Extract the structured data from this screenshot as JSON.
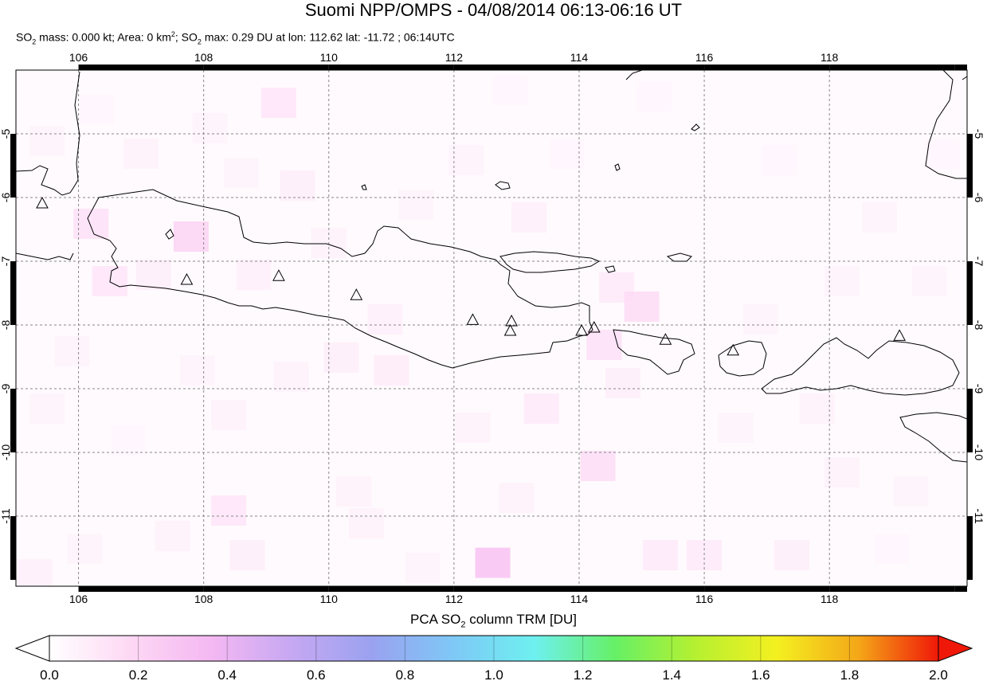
{
  "title": "Suomi NPP/OMPS - 04/08/2014 06:13-06:16 UT",
  "subtitle": {
    "p1": "SO",
    "p1_sub": "2",
    "p2": " mass: 0.000 kt; Area: 0 km",
    "p2_sup": "2",
    "p3": "; SO",
    "p3_sub": "2",
    "p4": " max: 0.29 DU at lon: 112.62 lat: -11.72 ; 06:14UTC"
  },
  "map": {
    "lon_range": [
      105,
      120.2
    ],
    "lat_range": [
      -12.1,
      -4
    ],
    "lon_ticks": [
      "106",
      "108",
      "110",
      "112",
      "114",
      "116",
      "118"
    ],
    "lat_ticks": [
      "-5",
      "-6",
      "-7",
      "-8",
      "-9",
      "-10",
      "-11"
    ],
    "grid": true,
    "volcanoes": [
      {
        "lon": 105.42,
        "lat": -6.1
      },
      {
        "lon": 107.73,
        "lat": -7.3
      },
      {
        "lon": 109.2,
        "lat": -7.24
      },
      {
        "lon": 110.44,
        "lat": -7.54
      },
      {
        "lon": 112.3,
        "lat": -7.93
      },
      {
        "lon": 112.92,
        "lat": -7.95
      },
      {
        "lon": 112.9,
        "lat": -8.1
      },
      {
        "lon": 114.04,
        "lat": -8.1
      },
      {
        "lon": 114.24,
        "lat": -8.05
      },
      {
        "lon": 115.38,
        "lat": -8.24
      },
      {
        "lon": 116.46,
        "lat": -8.41
      },
      {
        "lon": 119.12,
        "lat": -8.18
      }
    ],
    "so2_pixels": [
      {
        "lon": 105.5,
        "lat": -5.1,
        "v": 0.05
      },
      {
        "lon": 106.3,
        "lat": -4.6,
        "v": 0.04
      },
      {
        "lon": 107.0,
        "lat": -5.3,
        "v": 0.06
      },
      {
        "lon": 108.1,
        "lat": -4.9,
        "v": 0.05
      },
      {
        "lon": 109.2,
        "lat": -4.5,
        "v": 0.12
      },
      {
        "lon": 108.6,
        "lat": -5.6,
        "v": 0.05
      },
      {
        "lon": 109.5,
        "lat": -5.8,
        "v": 0.08
      },
      {
        "lon": 106.2,
        "lat": -6.4,
        "v": 0.14
      },
      {
        "lon": 107.8,
        "lat": -6.6,
        "v": 0.2
      },
      {
        "lon": 106.5,
        "lat": -7.3,
        "v": 0.12
      },
      {
        "lon": 107.2,
        "lat": -7.2,
        "v": 0.08
      },
      {
        "lon": 108.8,
        "lat": -7.2,
        "v": 0.07
      },
      {
        "lon": 110.0,
        "lat": -6.7,
        "v": 0.06
      },
      {
        "lon": 110.9,
        "lat": -7.9,
        "v": 0.07
      },
      {
        "lon": 111.4,
        "lat": -6.1,
        "v": 0.05
      },
      {
        "lon": 112.2,
        "lat": -5.4,
        "v": 0.05
      },
      {
        "lon": 113.2,
        "lat": -6.3,
        "v": 0.07
      },
      {
        "lon": 114.6,
        "lat": -7.4,
        "v": 0.1
      },
      {
        "lon": 115.0,
        "lat": -7.7,
        "v": 0.16
      },
      {
        "lon": 114.4,
        "lat": -8.3,
        "v": 0.14
      },
      {
        "lon": 114.7,
        "lat": -8.9,
        "v": 0.08
      },
      {
        "lon": 105.9,
        "lat": -8.4,
        "v": 0.05
      },
      {
        "lon": 105.5,
        "lat": -9.3,
        "v": 0.05
      },
      {
        "lon": 106.8,
        "lat": -9.8,
        "v": 0.04
      },
      {
        "lon": 107.9,
        "lat": -8.7,
        "v": 0.05
      },
      {
        "lon": 108.4,
        "lat": -9.4,
        "v": 0.06
      },
      {
        "lon": 109.4,
        "lat": -8.8,
        "v": 0.06
      },
      {
        "lon": 110.2,
        "lat": -8.5,
        "v": 0.08
      },
      {
        "lon": 111.0,
        "lat": -8.7,
        "v": 0.09
      },
      {
        "lon": 112.3,
        "lat": -9.6,
        "v": 0.06
      },
      {
        "lon": 113.4,
        "lat": -9.3,
        "v": 0.1
      },
      {
        "lon": 114.3,
        "lat": -10.2,
        "v": 0.15
      },
      {
        "lon": 113.0,
        "lat": -10.7,
        "v": 0.06
      },
      {
        "lon": 112.62,
        "lat": -11.72,
        "v": 0.29
      },
      {
        "lon": 110.4,
        "lat": -10.6,
        "v": 0.06
      },
      {
        "lon": 108.4,
        "lat": -10.9,
        "v": 0.12
      },
      {
        "lon": 107.5,
        "lat": -11.3,
        "v": 0.06
      },
      {
        "lon": 106.1,
        "lat": -11.5,
        "v": 0.05
      },
      {
        "lon": 108.7,
        "lat": -11.6,
        "v": 0.08
      },
      {
        "lon": 110.6,
        "lat": -11.1,
        "v": 0.06
      },
      {
        "lon": 111.5,
        "lat": -11.8,
        "v": 0.05
      },
      {
        "lon": 115.3,
        "lat": -11.6,
        "v": 0.1
      },
      {
        "lon": 116.0,
        "lat": -11.6,
        "v": 0.1
      },
      {
        "lon": 117.4,
        "lat": -11.6,
        "v": 0.08
      },
      {
        "lon": 118.2,
        "lat": -10.3,
        "v": 0.06
      },
      {
        "lon": 119.3,
        "lat": -10.6,
        "v": 0.05
      },
      {
        "lon": 119.0,
        "lat": -11.5,
        "v": 0.04
      },
      {
        "lon": 117.8,
        "lat": -9.3,
        "v": 0.06
      },
      {
        "lon": 116.5,
        "lat": -9.6,
        "v": 0.05
      },
      {
        "lon": 118.2,
        "lat": -7.3,
        "v": 0.05
      },
      {
        "lon": 117.2,
        "lat": -5.4,
        "v": 0.04
      },
      {
        "lon": 118.8,
        "lat": -6.3,
        "v": 0.05
      },
      {
        "lon": 119.6,
        "lat": -7.3,
        "v": 0.05
      },
      {
        "lon": 119.8,
        "lat": -5.3,
        "v": 0.04
      },
      {
        "lon": 116.9,
        "lat": -7.9,
        "v": 0.05
      },
      {
        "lon": 115.2,
        "lat": -4.4,
        "v": 0.04
      },
      {
        "lon": 113.8,
        "lat": -5.3,
        "v": 0.04
      },
      {
        "lon": 112.9,
        "lat": -4.3,
        "v": 0.04
      },
      {
        "lon": 105.3,
        "lat": -11.9,
        "v": 0.07
      }
    ]
  },
  "colorbar": {
    "title_a": "PCA SO",
    "title_sub": "2",
    "title_b": " column TRM [DU]",
    "vmin": 0.0,
    "vmax": 2.0,
    "tick_values": [
      0.0,
      0.2,
      0.4,
      0.6,
      0.8,
      1.0,
      1.2,
      1.4,
      1.6,
      1.8,
      2.0
    ],
    "tick_labels": [
      "0.0",
      "0.2",
      "0.4",
      "0.6",
      "0.8",
      "1.0",
      "1.2",
      "1.4",
      "1.6",
      "1.8",
      "2.0"
    ],
    "colors": [
      "#ffffff",
      "#fdd8f4",
      "#f4b8f2",
      "#c6a8f2",
      "#9aa2f0",
      "#7ec8f6",
      "#6ef0f0",
      "#66f066",
      "#b6f030",
      "#f4f020",
      "#f4a818",
      "#f01808"
    ]
  }
}
